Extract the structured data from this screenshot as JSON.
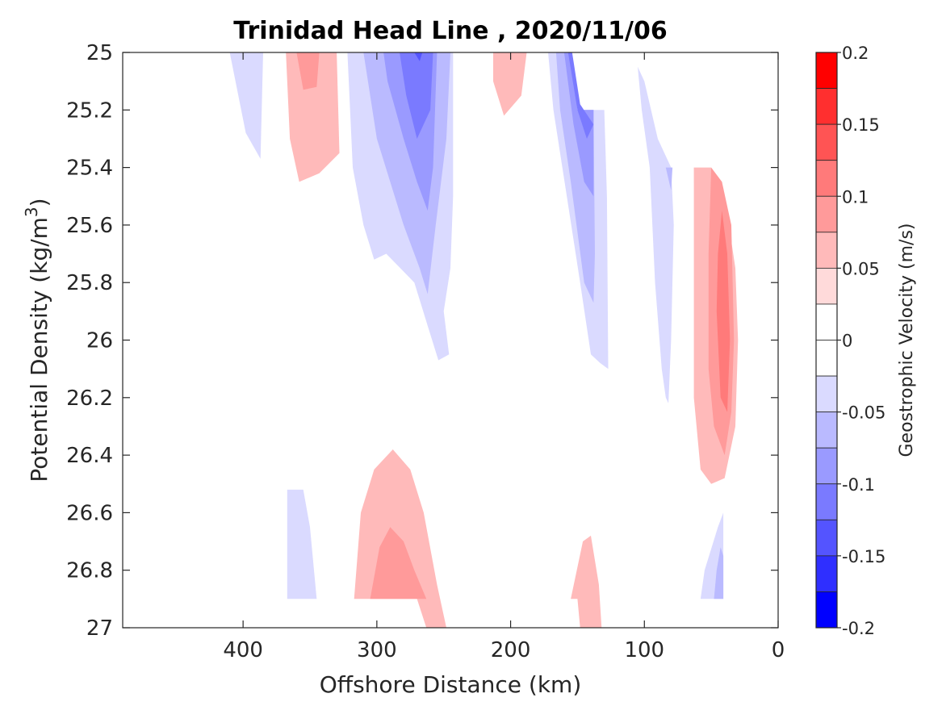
{
  "chart_data": {
    "type": "contour",
    "title": "Trinidad Head Line , 2020/11/06",
    "xlabel": "Offshore Distance (km)",
    "ylabel_main": "Potential Density (kg/m",
    "ylabel_sup": "3",
    "ylabel_close": ")",
    "xlim": [
      490,
      0
    ],
    "ylim": [
      25,
      27
    ],
    "y_reversed": true,
    "x_reversed": true,
    "grid": false,
    "xticks": [
      400,
      300,
      200,
      100,
      0
    ],
    "xtick_labels": [
      "400",
      "300",
      "200",
      "100",
      "0"
    ],
    "yticks": [
      25,
      25.2,
      25.4,
      25.6,
      25.8,
      26,
      26.2,
      26.4,
      26.6,
      26.8,
      27
    ],
    "ytick_labels": [
      "25",
      "25.2",
      "25.4",
      "25.6",
      "25.8",
      "26",
      "26.2",
      "26.4",
      "26.6",
      "26.8",
      "27"
    ],
    "colorbar": {
      "label": "Geostrophic Velocity (m/s)",
      "range": [
        -0.2,
        0.2
      ],
      "tick_values": [
        0.2,
        0.15,
        0.1,
        0.05,
        0,
        -0.05,
        -0.1,
        -0.15,
        -0.2
      ],
      "tick_labels": [
        "0.2",
        "0.15",
        "0.1",
        "0.05",
        "0",
        "-0.05",
        "-0.1",
        "-0.15",
        "-0.2"
      ],
      "levels": [
        {
          "from": 0.175,
          "to": 0.2,
          "color": "#ff0000"
        },
        {
          "from": 0.15,
          "to": 0.175,
          "color": "#ff2f2f"
        },
        {
          "from": 0.125,
          "to": 0.15,
          "color": "#ff5454"
        },
        {
          "from": 0.1,
          "to": 0.125,
          "color": "#ff7a7a"
        },
        {
          "from": 0.075,
          "to": 0.1,
          "color": "#ff9a9a"
        },
        {
          "from": 0.05,
          "to": 0.075,
          "color": "#ffbaba"
        },
        {
          "from": 0.025,
          "to": 0.05,
          "color": "#ffdada"
        },
        {
          "from": 0,
          "to": 0.025,
          "color": "#ffffff"
        },
        {
          "from": -0.025,
          "to": 0,
          "color": "#ffffff"
        },
        {
          "from": -0.05,
          "to": -0.025,
          "color": "#dadaff"
        },
        {
          "from": -0.075,
          "to": -0.05,
          "color": "#babaff"
        },
        {
          "from": -0.1,
          "to": -0.075,
          "color": "#9a9aff"
        },
        {
          "from": -0.125,
          "to": -0.1,
          "color": "#7a7aff"
        },
        {
          "from": -0.15,
          "to": -0.125,
          "color": "#5454ff"
        },
        {
          "from": -0.175,
          "to": -0.15,
          "color": "#2f2fff"
        },
        {
          "from": -0.2,
          "to": -0.175,
          "color": "#0000ff"
        }
      ]
    },
    "contours": [
      {
        "level": -0.05,
        "points": [
          [
            410,
            25
          ],
          [
            385,
            25
          ],
          [
            387,
            25.37
          ],
          [
            398,
            25.28
          ],
          [
            410,
            25
          ]
        ]
      },
      {
        "level": 0.05,
        "points": [
          [
            368,
            25
          ],
          [
            330,
            25
          ],
          [
            328,
            25.35
          ],
          [
            343,
            25.42
          ],
          [
            358,
            25.45
          ],
          [
            365,
            25.3
          ],
          [
            368,
            25
          ]
        ]
      },
      {
        "level": 0.075,
        "points": [
          [
            360,
            25
          ],
          [
            343,
            25
          ],
          [
            345,
            25.12
          ],
          [
            355,
            25.13
          ],
          [
            360,
            25
          ]
        ]
      },
      {
        "level": -0.05,
        "points": [
          [
            322,
            25
          ],
          [
            243,
            25
          ],
          [
            243,
            25.5
          ],
          [
            245,
            25.75
          ],
          [
            250,
            25.9
          ],
          [
            246,
            26.05
          ],
          [
            254,
            26.07
          ],
          [
            262,
            25.95
          ],
          [
            272,
            25.8
          ],
          [
            293,
            25.7
          ],
          [
            302,
            25.72
          ],
          [
            310,
            25.6
          ],
          [
            318,
            25.4
          ],
          [
            320,
            25.2
          ],
          [
            322,
            25
          ]
        ]
      },
      {
        "level": -0.075,
        "points": [
          [
            310,
            25
          ],
          [
            245,
            25
          ],
          [
            248,
            25.3
          ],
          [
            256,
            25.6
          ],
          [
            262,
            25.84
          ],
          [
            268,
            25.75
          ],
          [
            280,
            25.6
          ],
          [
            290,
            25.45
          ],
          [
            300,
            25.3
          ],
          [
            310,
            25
          ]
        ]
      },
      {
        "level": -0.1,
        "points": [
          [
            295,
            25
          ],
          [
            255,
            25
          ],
          [
            258,
            25.4
          ],
          [
            262,
            25.55
          ],
          [
            270,
            25.45
          ],
          [
            280,
            25.3
          ],
          [
            292,
            25.1
          ],
          [
            295,
            25
          ]
        ]
      },
      {
        "level": -0.125,
        "points": [
          [
            283,
            25
          ],
          [
            258,
            25
          ],
          [
            260,
            25.2
          ],
          [
            270,
            25.3
          ],
          [
            278,
            25.15
          ],
          [
            283,
            25
          ]
        ]
      },
      {
        "level": -0.15,
        "points": [
          [
            272,
            25
          ],
          [
            266,
            25
          ],
          [
            268,
            25.03
          ],
          [
            272,
            25
          ]
        ]
      },
      {
        "level": 0.05,
        "points": [
          [
            213,
            25
          ],
          [
            188,
            25
          ],
          [
            192,
            25.15
          ],
          [
            205,
            25.22
          ],
          [
            213,
            25.1
          ],
          [
            213,
            25
          ]
        ]
      },
      {
        "level": -0.05,
        "points": [
          [
            172,
            25
          ],
          [
            157,
            25
          ],
          [
            155,
            25.2
          ],
          [
            130,
            25.2
          ],
          [
            128,
            25.5
          ],
          [
            127,
            26.1
          ],
          [
            133,
            26.08
          ],
          [
            140,
            26.05
          ],
          [
            148,
            25.8
          ],
          [
            158,
            25.5
          ],
          [
            168,
            25.2
          ],
          [
            172,
            25
          ]
        ]
      },
      {
        "level": -0.075,
        "points": [
          [
            166,
            25
          ],
          [
            155,
            25
          ],
          [
            152,
            25.2
          ],
          [
            138,
            25.2
          ],
          [
            137,
            25.7
          ],
          [
            138,
            25.87
          ],
          [
            145,
            25.8
          ],
          [
            155,
            25.45
          ],
          [
            163,
            25.2
          ],
          [
            166,
            25
          ]
        ]
      },
      {
        "level": -0.1,
        "points": [
          [
            160,
            25
          ],
          [
            155,
            25
          ],
          [
            150,
            25.2
          ],
          [
            138,
            25.2
          ],
          [
            138,
            25.5
          ],
          [
            145,
            25.45
          ],
          [
            153,
            25.25
          ],
          [
            160,
            25
          ]
        ]
      },
      {
        "level": -0.125,
        "points": [
          [
            157,
            25
          ],
          [
            154,
            25
          ],
          [
            148,
            25.18
          ],
          [
            138,
            25.25
          ],
          [
            143,
            25.3
          ],
          [
            150,
            25.2
          ],
          [
            157,
            25
          ]
        ]
      },
      {
        "level": -0.05,
        "points": [
          [
            105,
            25.05
          ],
          [
            102,
            25.2
          ],
          [
            96,
            25.4
          ],
          [
            92,
            25.8
          ],
          [
            87,
            26.1
          ],
          [
            84,
            26.2
          ],
          [
            82,
            26.22
          ],
          [
            80,
            26.0
          ],
          [
            78,
            25.6
          ],
          [
            80,
            25.4
          ],
          [
            90,
            25.3
          ],
          [
            100,
            25.1
          ],
          [
            105,
            25.05
          ]
        ]
      },
      {
        "level": -0.075,
        "points": [
          [
            84,
            25.4
          ],
          [
            79,
            25.4
          ],
          [
            80,
            25.48
          ],
          [
            84,
            25.4
          ]
        ]
      },
      {
        "level": 0.05,
        "points": [
          [
            63,
            25.4
          ],
          [
            50,
            25.4
          ],
          [
            40,
            25.5
          ],
          [
            32,
            25.75
          ],
          [
            30,
            26.0
          ],
          [
            32,
            26.3
          ],
          [
            40,
            26.48
          ],
          [
            50,
            26.5
          ],
          [
            58,
            26.45
          ],
          [
            63,
            26.2
          ],
          [
            63,
            25.4
          ]
        ]
      },
      {
        "level": 0.075,
        "points": [
          [
            50,
            25.4
          ],
          [
            42,
            25.45
          ],
          [
            35,
            25.6
          ],
          [
            33,
            26.0
          ],
          [
            35,
            26.25
          ],
          [
            40,
            26.4
          ],
          [
            48,
            26.3
          ],
          [
            52,
            26.1
          ],
          [
            52,
            25.7
          ],
          [
            50,
            25.4
          ]
        ]
      },
      {
        "level": 0.1,
        "points": [
          [
            42,
            25.55
          ],
          [
            38,
            25.7
          ],
          [
            36,
            26.0
          ],
          [
            38,
            26.25
          ],
          [
            43,
            26.2
          ],
          [
            46,
            25.9
          ],
          [
            45,
            25.7
          ],
          [
            42,
            25.55
          ]
        ]
      },
      {
        "level": -0.05,
        "points": [
          [
            367,
            26.52
          ],
          [
            355,
            26.52
          ],
          [
            350,
            26.65
          ],
          [
            345,
            26.9
          ],
          [
            367,
            26.9
          ],
          [
            367,
            26.52
          ]
        ]
      },
      {
        "level": 0.05,
        "points": [
          [
            317,
            26.9
          ],
          [
            312,
            26.6
          ],
          [
            302,
            26.45
          ],
          [
            288,
            26.38
          ],
          [
            275,
            26.45
          ],
          [
            265,
            26.6
          ],
          [
            255,
            26.85
          ],
          [
            248,
            27
          ],
          [
            263,
            27
          ],
          [
            270,
            26.9
          ],
          [
            317,
            26.9
          ]
        ]
      },
      {
        "level": 0.075,
        "points": [
          [
            305,
            26.9
          ],
          [
            298,
            26.72
          ],
          [
            290,
            26.65
          ],
          [
            280,
            26.7
          ],
          [
            272,
            26.8
          ],
          [
            263,
            26.9
          ],
          [
            305,
            26.9
          ]
        ]
      },
      {
        "level": 0.05,
        "points": [
          [
            155,
            26.9
          ],
          [
            146,
            26.7
          ],
          [
            140,
            26.68
          ],
          [
            134,
            26.85
          ],
          [
            132,
            27
          ],
          [
            148,
            27
          ],
          [
            150,
            26.9
          ],
          [
            155,
            26.9
          ]
        ]
      },
      {
        "level": -0.05,
        "points": [
          [
            58,
            26.9
          ],
          [
            55,
            26.8
          ],
          [
            45,
            26.65
          ],
          [
            41,
            26.6
          ],
          [
            41,
            26.9
          ],
          [
            58,
            26.9
          ]
        ]
      },
      {
        "level": -0.075,
        "points": [
          [
            48,
            26.9
          ],
          [
            46,
            26.8
          ],
          [
            43,
            26.72
          ],
          [
            41,
            26.75
          ],
          [
            41,
            26.9
          ],
          [
            48,
            26.9
          ]
        ]
      }
    ]
  }
}
